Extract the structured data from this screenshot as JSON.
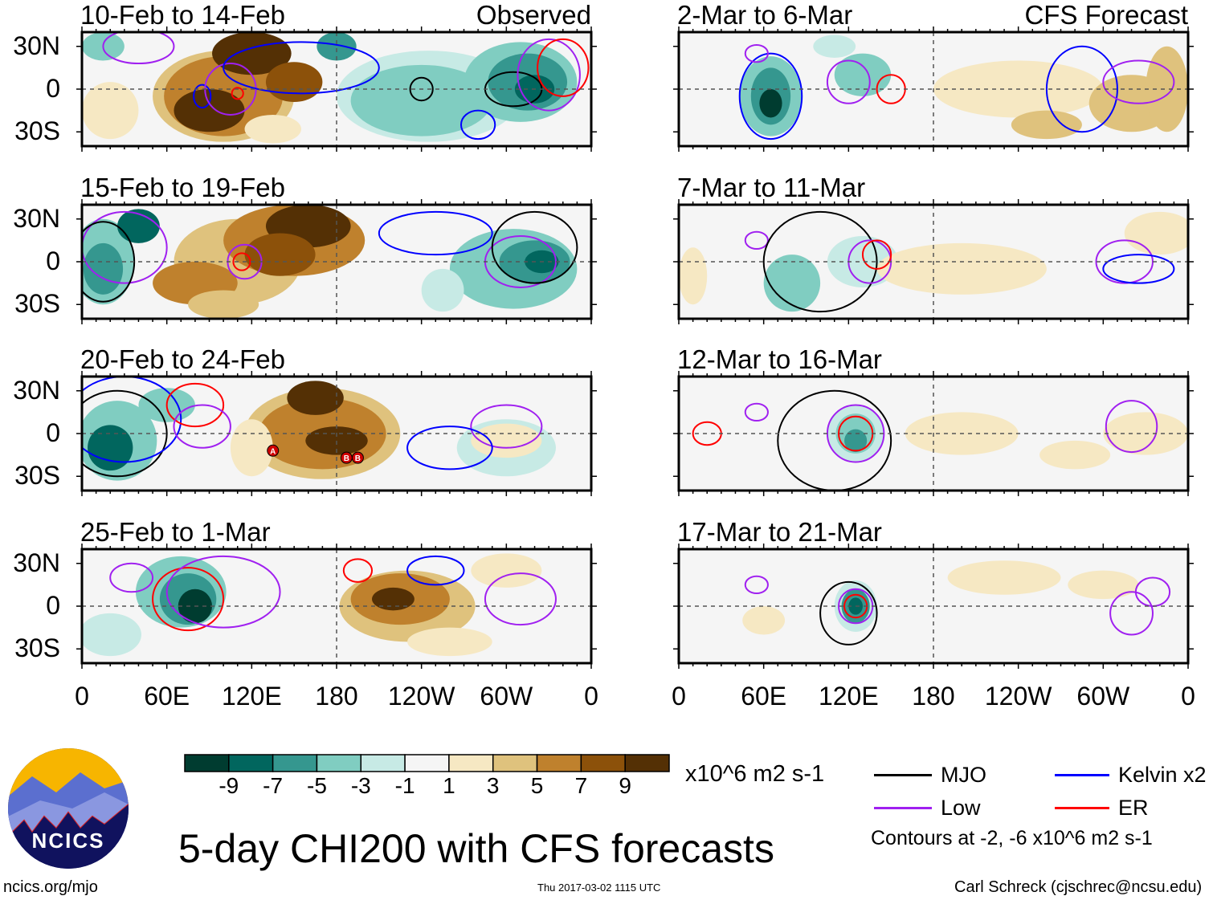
{
  "panels_left": [
    {
      "title": "10-Feb to 14-Feb",
      "tag": "Observed"
    },
    {
      "title": "15-Feb to 19-Feb"
    },
    {
      "title": "20-Feb to 24-Feb"
    },
    {
      "title": "25-Feb to 1-Mar"
    }
  ],
  "panels_right": [
    {
      "title": "2-Mar to 6-Mar",
      "tag": "CFS Forecast"
    },
    {
      "title": "7-Mar to 11-Mar"
    },
    {
      "title": "12-Mar to 16-Mar"
    },
    {
      "title": "17-Mar to 21-Mar"
    }
  ],
  "lat_labels": [
    "30N",
    "0",
    "30S"
  ],
  "lon_labels": [
    "0",
    "60E",
    "120E",
    "180",
    "120W",
    "60W",
    "0"
  ],
  "storm_labels": [
    "A",
    "B",
    "B"
  ],
  "colorbar": {
    "labels": [
      "-9",
      "-7",
      "-5",
      "-3",
      "-1",
      "1",
      "3",
      "5",
      "7",
      "9"
    ],
    "colors": [
      "#003c30",
      "#01665e",
      "#35978f",
      "#80cdc1",
      "#c7eae5",
      "#f5f5f5",
      "#f6e8c3",
      "#dfc27d",
      "#bf812d",
      "#8c510a",
      "#543005"
    ],
    "units": "x10^6 m2 s-1"
  },
  "legend": [
    {
      "label": "MJO",
      "color": "#000000"
    },
    {
      "label": "Kelvin x2",
      "color": "#0000ff"
    },
    {
      "label": "Low",
      "color": "#a020f0"
    },
    {
      "label": "ER",
      "color": "#ff0000"
    }
  ],
  "contours_note": "Contours at -2, -6 x10^6 m2 s-1",
  "main_title": "5-day CHI200 with CFS forecasts",
  "logo_text": "NCICS",
  "url": "ncics.org/mjo",
  "timestamp": "Thu 2017-03-02 1115 UTC",
  "credit": "Carl Schreck (cjschrec@ncsu.edu)"
}
